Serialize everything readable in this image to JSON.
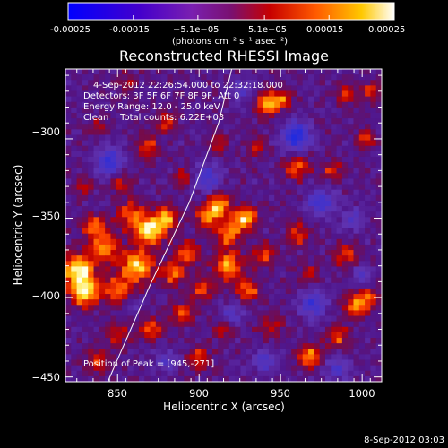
{
  "chart_data": {
    "type": "heatmap",
    "title": "Reconstructed RHESSI Image",
    "xlabel": "Heliocentric X (arcsec)",
    "ylabel": "Heliocentric Y (arcsec)",
    "xlim": [
      818,
      1012
    ],
    "ylim": [
      -453,
      -256
    ],
    "x_ticks": [
      850,
      900,
      950,
      1000
    ],
    "y_ticks": [
      -300,
      -350,
      -400,
      -450
    ],
    "x_tick_labels": [
      "850",
      "900",
      "950",
      "1000"
    ],
    "y_tick_labels": [
      "−300",
      "−350",
      "−400",
      "−450"
    ],
    "colorbar": {
      "range": [
        -0.00025,
        0.00025
      ],
      "ticks": [
        "-0.00025",
        "-0.00015",
        "−5.1e−05",
        "5.1e−05",
        "0.00015",
        "0.00025"
      ],
      "unit_label": "(photons cm⁻² s⁻¹ asec⁻²)"
    },
    "annotations": [
      "4-Sep-2012 22:26:54.000 to 22:32:18.000",
      "Detectors: 3F 5F 6F 7F 8F 9F, Att 0",
      "Energy Range: 12.0 - 25.0 keV",
      "Clean    Total counts: 6.22E+03"
    ],
    "peak_label": "Position of Peak = [945,-271]",
    "peak_position": [
      945,
      -271
    ],
    "limb_curve": [
      [
        844,
        -453
      ],
      [
        870,
        -392
      ],
      [
        894,
        -340
      ],
      [
        912,
        -290
      ],
      [
        920,
        -256
      ]
    ],
    "blobs": [
      {
        "x": 826,
        "y": -383,
        "v": 1.0,
        "s": 7
      },
      {
        "x": 830,
        "y": -397,
        "v": 0.9,
        "s": 6
      },
      {
        "x": 842,
        "y": -368,
        "v": 0.7,
        "s": 6
      },
      {
        "x": 836,
        "y": -355,
        "v": 0.6,
        "s": 5
      },
      {
        "x": 850,
        "y": -395,
        "v": 0.6,
        "s": 6
      },
      {
        "x": 862,
        "y": -380,
        "v": 0.9,
        "s": 7
      },
      {
        "x": 870,
        "y": -358,
        "v": 1.0,
        "s": 6
      },
      {
        "x": 858,
        "y": -348,
        "v": 0.6,
        "s": 6
      },
      {
        "x": 880,
        "y": -350,
        "v": 0.7,
        "s": 5
      },
      {
        "x": 884,
        "y": -385,
        "v": 0.6,
        "s": 5
      },
      {
        "x": 893,
        "y": -372,
        "v": 0.6,
        "s": 5
      },
      {
        "x": 905,
        "y": -350,
        "v": 0.6,
        "s": 5
      },
      {
        "x": 912,
        "y": -342,
        "v": 0.8,
        "s": 5
      },
      {
        "x": 918,
        "y": -360,
        "v": 0.7,
        "s": 5
      },
      {
        "x": 928,
        "y": -350,
        "v": 0.9,
        "s": 5
      },
      {
        "x": 918,
        "y": -380,
        "v": 0.8,
        "s": 6
      },
      {
        "x": 930,
        "y": -395,
        "v": 0.6,
        "s": 5
      },
      {
        "x": 940,
        "y": -373,
        "v": 0.5,
        "s": 5
      },
      {
        "x": 902,
        "y": -395,
        "v": 0.5,
        "s": 5
      },
      {
        "x": 890,
        "y": -410,
        "v": 0.5,
        "s": 5
      },
      {
        "x": 870,
        "y": -420,
        "v": 0.5,
        "s": 5
      },
      {
        "x": 850,
        "y": -423,
        "v": 0.4,
        "s": 5
      },
      {
        "x": 838,
        "y": -440,
        "v": 0.5,
        "s": 5
      },
      {
        "x": 900,
        "y": -438,
        "v": 0.5,
        "s": 5
      },
      {
        "x": 944,
        "y": -418,
        "v": 0.4,
        "s": 5
      },
      {
        "x": 968,
        "y": -437,
        "v": 0.7,
        "s": 5
      },
      {
        "x": 985,
        "y": -425,
        "v": 0.5,
        "s": 5
      },
      {
        "x": 996,
        "y": -405,
        "v": 0.7,
        "s": 5
      },
      {
        "x": 1004,
        "y": -400,
        "v": 0.5,
        "s": 4
      },
      {
        "x": 990,
        "y": -373,
        "v": 0.5,
        "s": 5
      },
      {
        "x": 960,
        "y": -360,
        "v": 0.5,
        "s": 5
      },
      {
        "x": 942,
        "y": -278,
        "v": 0.8,
        "s": 5
      },
      {
        "x": 952,
        "y": -275,
        "v": 0.5,
        "s": 4
      },
      {
        "x": 960,
        "y": -318,
        "v": 0.6,
        "s": 5
      },
      {
        "x": 982,
        "y": -320,
        "v": 0.4,
        "s": 5
      },
      {
        "x": 990,
        "y": -272,
        "v": 0.5,
        "s": 4
      },
      {
        "x": 1005,
        "y": -270,
        "v": 0.5,
        "s": 4
      },
      {
        "x": 1002,
        "y": -300,
        "v": 0.5,
        "s": 4
      },
      {
        "x": 868,
        "y": -305,
        "v": 0.5,
        "s": 5
      },
      {
        "x": 880,
        "y": -290,
        "v": 0.5,
        "s": 4
      },
      {
        "x": 852,
        "y": -328,
        "v": 0.4,
        "s": 5
      },
      {
        "x": 830,
        "y": -330,
        "v": 0.4,
        "s": 4
      },
      {
        "x": 912,
        "y": -303,
        "v": 0.4,
        "s": 4
      },
      {
        "x": 935,
        "y": -305,
        "v": 0.4,
        "s": 4
      },
      {
        "x": 968,
        "y": -385,
        "v": 0.4,
        "s": 4
      },
      {
        "x": 915,
        "y": -420,
        "v": 0.4,
        "s": 4
      },
      {
        "x": 838,
        "y": -292,
        "v": 0.3,
        "s": 4
      },
      {
        "x": 855,
        "y": -265,
        "v": 0.3,
        "s": 4
      },
      {
        "x": 890,
        "y": -325,
        "v": 0.4,
        "s": 4
      },
      {
        "x": 845,
        "y": -315,
        "v": -0.7,
        "s": 6
      },
      {
        "x": 905,
        "y": -325,
        "v": -0.6,
        "s": 6
      },
      {
        "x": 960,
        "y": -298,
        "v": -0.9,
        "s": 6
      },
      {
        "x": 975,
        "y": -340,
        "v": -0.6,
        "s": 6
      },
      {
        "x": 970,
        "y": -405,
        "v": -0.6,
        "s": 6
      },
      {
        "x": 985,
        "y": -445,
        "v": -0.5,
        "s": 5
      },
      {
        "x": 940,
        "y": -440,
        "v": -0.5,
        "s": 5
      },
      {
        "x": 880,
        "y": -440,
        "v": -0.4,
        "s": 5
      },
      {
        "x": 926,
        "y": -270,
        "v": -0.4,
        "s": 5
      },
      {
        "x": 995,
        "y": -350,
        "v": -0.4,
        "s": 5
      },
      {
        "x": 920,
        "y": -410,
        "v": -0.4,
        "s": 5
      },
      {
        "x": 860,
        "y": -405,
        "v": -0.3,
        "s": 4
      },
      {
        "x": 1000,
        "y": -385,
        "v": -0.4,
        "s": 4
      }
    ]
  },
  "footer": {
    "timestamp": "8-Sep-2012 03:03"
  }
}
